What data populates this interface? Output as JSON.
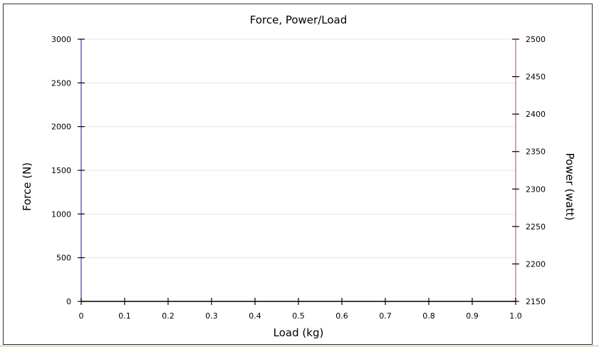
{
  "chart_data": {
    "type": "line",
    "title": "Force, Power/Load",
    "xlabel": "Load (kg)",
    "ylabel": "Force (N)",
    "y2label": "Power (watt)",
    "xlim": [
      0,
      1.0
    ],
    "ylim": [
      0,
      3000
    ],
    "y2lim": [
      2150,
      2500
    ],
    "x_ticks": [
      0,
      0.1,
      0.2,
      0.3,
      0.4,
      0.5,
      0.6,
      0.7,
      0.8,
      0.9,
      1.0
    ],
    "x_tick_labels": [
      "0",
      "0.1",
      "0.2",
      "0.3",
      "0.4",
      "0.5",
      "0.6",
      "0.7",
      "0.8",
      "0.9",
      "1.0"
    ],
    "y_ticks": [
      0,
      500,
      1000,
      1500,
      2000,
      2500,
      3000
    ],
    "y_tick_labels": [
      "0",
      "500",
      "1000",
      "1500",
      "2000",
      "2500",
      "3000"
    ],
    "y2_ticks": [
      2150,
      2200,
      2250,
      2300,
      2350,
      2400,
      2450,
      2500
    ],
    "y2_tick_labels": [
      "2150",
      "2200",
      "2250",
      "2300",
      "2350",
      "2400",
      "2450",
      "2500"
    ],
    "grid": true,
    "colors": {
      "left_axis": "#6a5acd",
      "right_axis": "#e07b7b",
      "grid": "#e6e6e6",
      "axis": "#000000"
    },
    "series": []
  }
}
